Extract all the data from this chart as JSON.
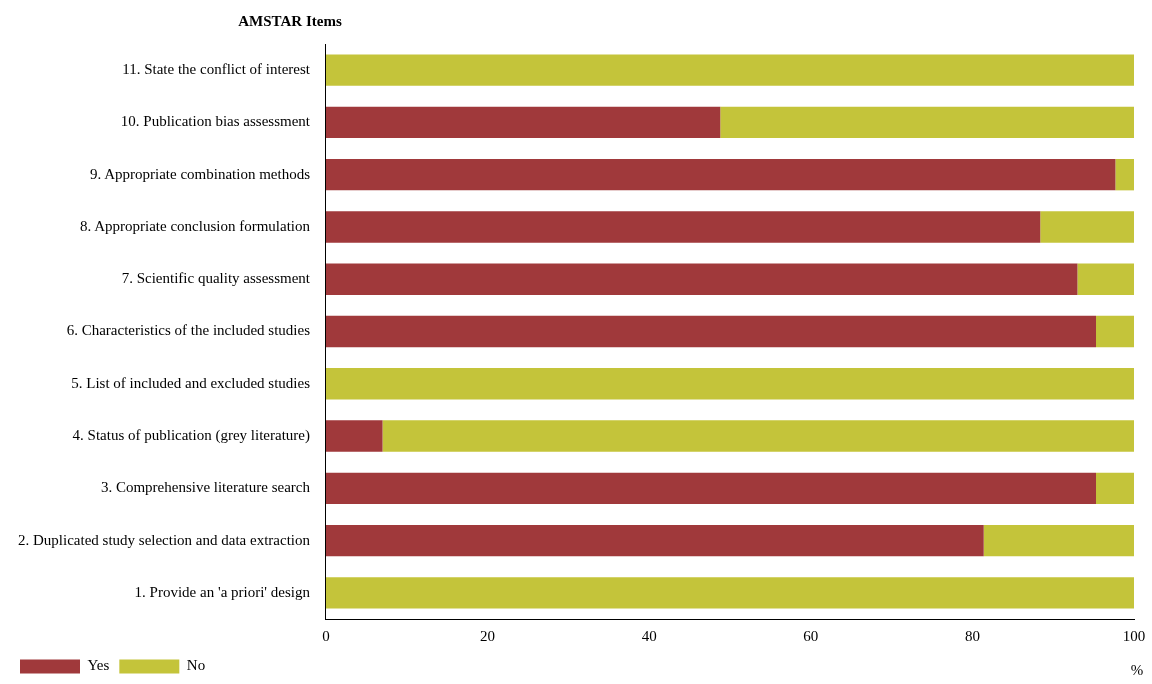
{
  "chart_data": {
    "type": "bar",
    "orientation": "horizontal",
    "stacked": true,
    "ylabel": "AMSTAR Items",
    "xlabel": "%",
    "categories": [
      "11. State the conflict of interest",
      "10. Publication bias assessment",
      "9. Appropriate combination methods",
      "8. Appropriate conclusion formulation",
      "7. Scientific quality assessment",
      "6. Characteristics of the included studies",
      "5. List of included and excluded studies",
      "4. Status of publication (grey literature)",
      "3. Comprehensive literature search",
      "2. Duplicated study selection and data extraction",
      "1. Provide an 'a priori' design"
    ],
    "series": [
      {
        "name": "Yes",
        "color": "#a0393b",
        "values": [
          0,
          48.8,
          97.7,
          88.4,
          93.0,
          95.3,
          0,
          7.0,
          95.3,
          81.4,
          0
        ]
      },
      {
        "name": "No",
        "color": "#c4c43a",
        "values": [
          100,
          51.2,
          2.3,
          11.6,
          7.0,
          4.7,
          100,
          93.0,
          4.7,
          18.6,
          100
        ]
      }
    ],
    "xlim": [
      0,
      100
    ],
    "xticks": [
      0,
      20,
      40,
      60,
      80,
      100
    ],
    "grid": false,
    "legend": "bottom left"
  }
}
